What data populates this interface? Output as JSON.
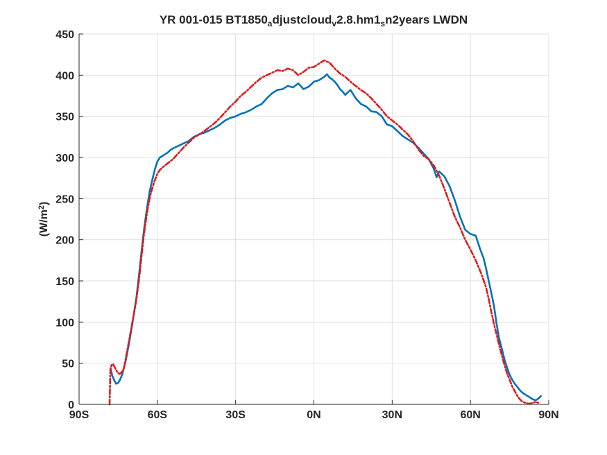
{
  "chart_data": {
    "type": "line",
    "title": {
      "parts": [
        {
          "text": "YR 001-015 BT1850",
          "sub": false
        },
        {
          "text": "a",
          "sub": true
        },
        {
          "text": "djustcloud",
          "sub": false
        },
        {
          "text": "v",
          "sub": true
        },
        {
          "text": "2.8.hm1",
          "sub": false
        },
        {
          "text": "s",
          "sub": true
        },
        {
          "text": "n2years LWDN",
          "sub": false
        }
      ]
    },
    "xlabel": "",
    "ylabel": {
      "main": "(W/m",
      "sup": "2",
      "close": ")"
    },
    "xlim": [
      -90,
      90
    ],
    "ylim": [
      0,
      450
    ],
    "xticks": [
      -90,
      -60,
      -30,
      0,
      30,
      60,
      90
    ],
    "xticklabels": [
      "90S",
      "60S",
      "30S",
      "0N",
      "30N",
      "60N",
      "90N"
    ],
    "yticks": [
      0,
      50,
      100,
      150,
      200,
      250,
      300,
      350,
      400,
      450
    ],
    "yticklabels": [
      "0",
      "50",
      "100",
      "150",
      "200",
      "250",
      "300",
      "350",
      "400",
      "450"
    ],
    "grid": true,
    "series": [
      {
        "color": "#0072bd",
        "style": "solid",
        "x": [
          -78,
          -77.3,
          -76.5,
          -75.8,
          -75,
          -74.3,
          -73.5,
          -72.8,
          -72,
          -71,
          -70,
          -69,
          -68,
          -67,
          -66,
          -65,
          -64,
          -63,
          -62,
          -61,
          -60,
          -59,
          -58,
          -57,
          -56,
          -55,
          -54,
          -52,
          -50,
          -48,
          -46,
          -44,
          -42,
          -40,
          -38,
          -36,
          -34,
          -32,
          -30,
          -28,
          -26,
          -24,
          -22,
          -20,
          -18,
          -16,
          -14,
          -12,
          -10,
          -8,
          -6,
          -4,
          -2,
          0,
          2,
          4,
          5,
          6,
          7,
          8,
          9,
          10,
          11,
          12,
          14,
          16,
          18,
          20,
          22,
          24,
          26,
          28,
          30,
          32,
          34,
          36,
          38,
          40,
          42,
          44,
          46,
          47,
          48,
          50,
          52,
          54,
          56,
          58,
          60,
          62,
          64,
          65,
          66,
          67,
          68,
          69,
          70,
          71,
          72,
          73,
          74,
          75,
          76,
          77,
          78,
          79,
          80,
          81,
          82,
          83,
          84,
          85,
          86,
          87
        ],
        "y": [
          44,
          35,
          29,
          25,
          26,
          30,
          36,
          45,
          55,
          72,
          90,
          110,
          130,
          158,
          188,
          215,
          238,
          258,
          272,
          285,
          295,
          300,
          302,
          304,
          306,
          309,
          311,
          314,
          317,
          320,
          325,
          328,
          330,
          333,
          336,
          340,
          345,
          348,
          350,
          353,
          355,
          358,
          362,
          365,
          372,
          378,
          382,
          383,
          387,
          385,
          390,
          383,
          386,
          392,
          394,
          398,
          401,
          397,
          395,
          392,
          388,
          383,
          380,
          376,
          382,
          372,
          365,
          362,
          356,
          355,
          350,
          340,
          338,
          332,
          326,
          322,
          318,
          312,
          305,
          298,
          286,
          276,
          283,
          277,
          265,
          248,
          228,
          212,
          207,
          205,
          186,
          178,
          165,
          150,
          135,
          120,
          98,
          80,
          68,
          55,
          45,
          36,
          30,
          25,
          21,
          17,
          14,
          12,
          10,
          8,
          6,
          5,
          7,
          10
        ]
      },
      {
        "color": "#e11a1a",
        "style": "dash-dot",
        "x": [
          -78.3,
          -78,
          -77.5,
          -77,
          -76.5,
          -76,
          -75.5,
          -75,
          -74.5,
          -74,
          -73.5,
          -73,
          -72.5,
          -72,
          -71,
          -70,
          -69,
          -68,
          -67,
          -66,
          -65,
          -64,
          -63,
          -62,
          -61,
          -60,
          -59,
          -58,
          -56,
          -54,
          -52,
          -50,
          -48,
          -46,
          -44,
          -42,
          -40,
          -38,
          -36,
          -34,
          -32,
          -30,
          -28,
          -26,
          -24,
          -22,
          -20,
          -18,
          -16,
          -14,
          -12,
          -10,
          -8,
          -6,
          -4,
          -2,
          0,
          2,
          4,
          6,
          8,
          10,
          12,
          14,
          16,
          18,
          20,
          22,
          24,
          26,
          28,
          30,
          32,
          34,
          36,
          38,
          40,
          42,
          44,
          46,
          48,
          50,
          52,
          54,
          56,
          58,
          60,
          62,
          64,
          66,
          67,
          68,
          69,
          70,
          71,
          72,
          73,
          74,
          75,
          76,
          77,
          78,
          79,
          80,
          81,
          82,
          83,
          84,
          85,
          86
        ],
        "y": [
          0,
          42,
          48,
          49,
          46,
          43,
          40,
          38,
          37,
          38,
          40,
          42,
          48,
          58,
          75,
          92,
          110,
          128,
          152,
          182,
          210,
          232,
          250,
          262,
          272,
          280,
          285,
          288,
          293,
          298,
          305,
          312,
          318,
          324,
          328,
          332,
          337,
          342,
          348,
          355,
          362,
          368,
          375,
          380,
          386,
          392,
          397,
          400,
          403,
          406,
          405,
          408,
          406,
          400,
          404,
          409,
          410,
          414,
          418,
          415,
          408,
          402,
          398,
          392,
          387,
          382,
          378,
          372,
          365,
          358,
          350,
          345,
          340,
          334,
          328,
          320,
          310,
          302,
          298,
          290,
          278,
          262,
          245,
          228,
          215,
          200,
          188,
          175,
          160,
          142,
          128,
          112,
          98,
          85,
          72,
          60,
          48,
          38,
          30,
          22,
          16,
          10,
          6,
          3,
          2,
          1,
          1,
          2,
          3,
          2
        ]
      }
    ]
  }
}
